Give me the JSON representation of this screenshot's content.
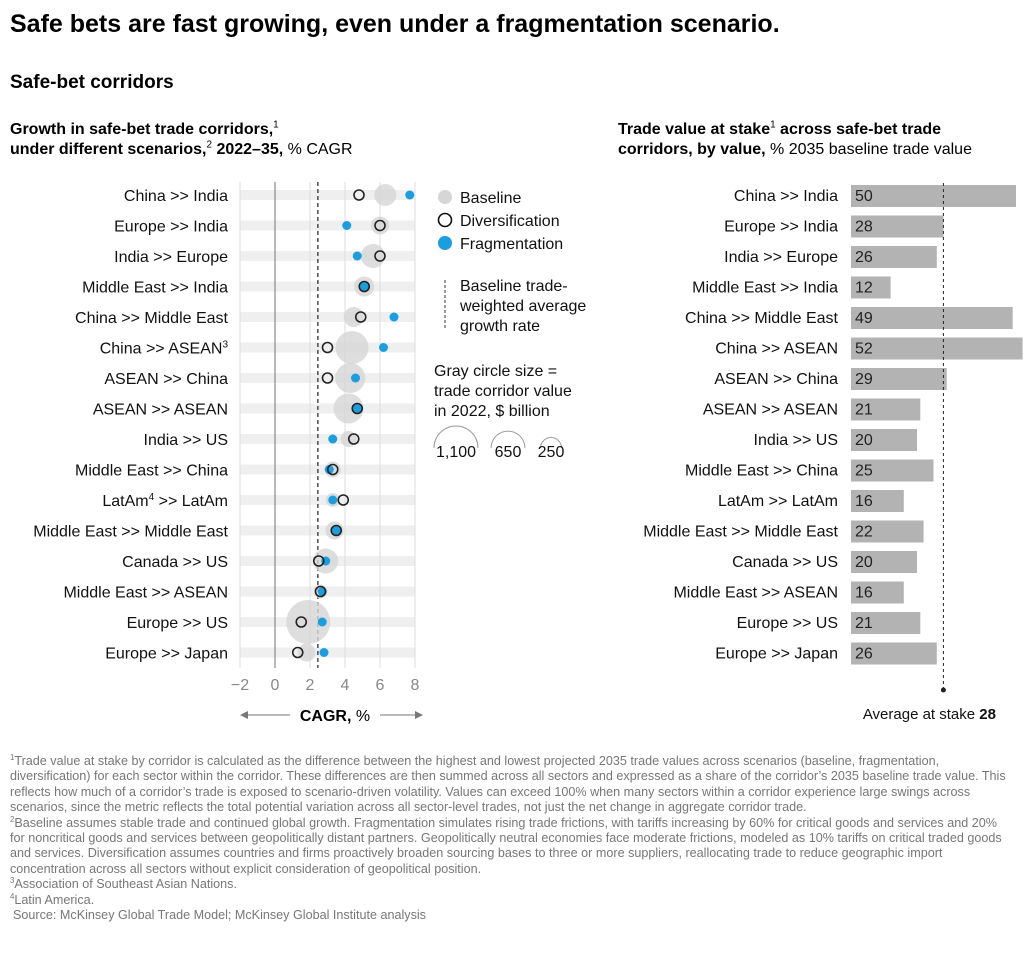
{
  "title": "Safe bets are fast growing, even under a fragmentation scenario.",
  "subtitle": "Safe-bet corridors",
  "colors": {
    "baseline": "#d6d6d6",
    "diversification": "#222222",
    "fragmentation": "#1a9ee0",
    "bar": "#b3b3b3",
    "band": "#efefef"
  },
  "chart_data": [
    {
      "type": "scatter",
      "title_line1": "Growth in safe-bet trade corridors,",
      "title_sup1": "1",
      "title_line2_bold": "under different scenarios,",
      "title_sup2": "2",
      "title_line2_bold2": " 2022–35,",
      "title_line2_rest": " % CAGR",
      "xlabel": "CAGR,",
      "xlabel_unit": " %",
      "xlim": [
        -2,
        8
      ],
      "xticks": [
        "−2",
        "0",
        "2",
        "4",
        "6",
        "8"
      ],
      "xtick_values": [
        -2,
        0,
        2,
        4,
        6,
        8
      ],
      "grid": true,
      "reference_line": {
        "value": 2.45,
        "label": "Baseline trade-weighted average growth rate",
        "label_lines": [
          "Baseline trade-",
          "weighted average",
          "growth rate"
        ]
      },
      "legend": {
        "placement": "right",
        "items": [
          "Baseline",
          "Diversification",
          "Fragmentation"
        ]
      },
      "size_legend": {
        "lines": [
          "Gray circle size =",
          "trade corridor value",
          "in 2022, $ billion"
        ],
        "values": [
          1100,
          650,
          250
        ],
        "labels": [
          "1,100",
          "650",
          "250"
        ]
      },
      "categories": [
        {
          "label": "China >> India",
          "sup": ""
        },
        {
          "label": "Europe >> India",
          "sup": ""
        },
        {
          "label": "India >> Europe",
          "sup": ""
        },
        {
          "label": "Middle East >> India",
          "sup": ""
        },
        {
          "label": "China >> Middle East",
          "sup": ""
        },
        {
          "label": "China >> ASEAN",
          "sup": "3"
        },
        {
          "label": "ASEAN >> China",
          "sup": ""
        },
        {
          "label": "ASEAN >> ASEAN",
          "sup": ""
        },
        {
          "label": "India >> US",
          "sup": ""
        },
        {
          "label": "Middle East >> China",
          "sup": ""
        },
        {
          "label": "LatAm",
          "sup": "4",
          "label_rest": " >> LatAm"
        },
        {
          "label": "Middle East >> Middle East",
          "sup": ""
        },
        {
          "label": "Canada >> US",
          "sup": ""
        },
        {
          "label": "Middle East >> ASEAN",
          "sup": ""
        },
        {
          "label": "Europe >> US",
          "sup": ""
        },
        {
          "label": "Europe >> Japan",
          "sup": ""
        }
      ],
      "series": [
        {
          "name": "Baseline",
          "values": [
            6.3,
            6.0,
            5.6,
            5.1,
            4.5,
            4.4,
            4.3,
            4.2,
            4.2,
            3.3,
            3.3,
            3.4,
            2.9,
            2.6,
            1.9,
            1.8
          ]
        },
        {
          "name": "Diversification",
          "values": [
            4.8,
            6.0,
            6.0,
            5.1,
            4.9,
            3.0,
            3.0,
            4.7,
            4.5,
            3.3,
            3.9,
            3.5,
            2.5,
            2.6,
            1.5,
            1.3
          ]
        },
        {
          "name": "Fragmentation",
          "values": [
            7.7,
            4.1,
            4.7,
            5.1,
            6.8,
            6.2,
            4.6,
            4.7,
            3.3,
            3.1,
            3.3,
            3.5,
            2.9,
            2.7,
            2.7,
            2.8
          ]
        }
      ],
      "baseline_size_billion": [
        275,
        185,
        330,
        230,
        230,
        620,
        510,
        510,
        145,
        145,
        110,
        185,
        355,
        110,
        1100,
        185
      ]
    },
    {
      "type": "bar",
      "orientation": "horizontal",
      "title_bold1": "Trade value at stake",
      "title_sup": "1",
      "title_bold2": " across safe-bet trade",
      "title_line2_bold": "corridors, by value,",
      "title_line2_rest": " % 2035 baseline trade value",
      "categories": [
        "China >> India",
        "Europe >> India",
        "India >> Europe",
        "Middle East >> India",
        "China >> Middle East",
        "China >> ASEAN",
        "ASEAN >> China",
        "ASEAN >> ASEAN",
        "India >> US",
        "Middle East >> China",
        "LatAm >> LatAm",
        "Middle East >> Middle East",
        "Canada >> US",
        "Middle East >> ASEAN",
        "Europe >> US",
        "Europe >> Japan"
      ],
      "values": [
        50,
        28,
        26,
        12,
        49,
        52,
        29,
        21,
        20,
        25,
        16,
        22,
        20,
        16,
        21,
        26
      ],
      "average": {
        "label": "Average at stake",
        "value": 28,
        "value_label": "28"
      }
    }
  ],
  "footnotes": [
    {
      "sup": "1",
      "text": "Trade value at stake by corridor is calculated as the difference between the highest and lowest projected 2035 trade values across scenarios (baseline, fragmentation, diversification) for each sector within the corridor. These differences are then summed across all sectors and expressed as a share of the corridor’s 2035 baseline trade value. This reflects how much of a corridor’s trade is exposed to scenario-driven volatility. Values can exceed 100% when many sectors within a corridor experience large swings across scenarios, since the metric reflects the total potential variation across all sector-level trades, not just the net change in aggregate corridor trade."
    },
    {
      "sup": "2",
      "text": "Baseline assumes stable trade and continued global growth. Fragmentation simulates rising trade frictions, with tariffs increasing by 60% for critical goods and services and 20% for noncritical goods and services between geopolitically distant partners. Geopolitically neutral economies face moderate frictions, modeled as 10% tariffs on critical traded goods and services. Diversification assumes countries and firms proactively broaden sourcing bases to three or more suppliers, reallocating trade to reduce geographic import concentration across all sectors without explicit consideration of geopolitical position."
    },
    {
      "sup": "3",
      "text": "Association of Southeast Asian Nations."
    },
    {
      "sup": "4",
      "text": "Latin America."
    }
  ],
  "source": "Source: McKinsey Global Trade Model; McKinsey Global Institute analysis"
}
